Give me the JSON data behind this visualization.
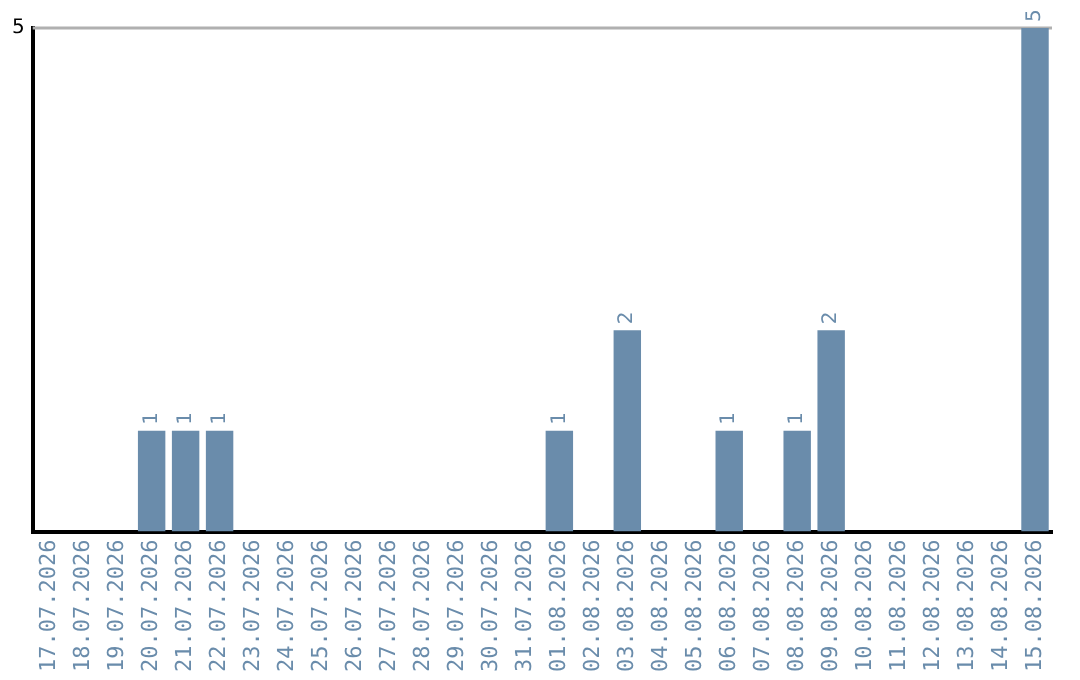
{
  "chart_data": {
    "type": "bar",
    "categories": [
      "17.07.2026",
      "18.07.2026",
      "19.07.2026",
      "20.07.2026",
      "21.07.2026",
      "22.07.2026",
      "23.07.2026",
      "24.07.2026",
      "25.07.2026",
      "26.07.2026",
      "27.07.2026",
      "28.07.2026",
      "29.07.2026",
      "30.07.2026",
      "31.07.2026",
      "01.08.2026",
      "02.08.2026",
      "03.08.2026",
      "04.08.2026",
      "05.08.2026",
      "06.08.2026",
      "07.08.2026",
      "08.08.2026",
      "09.08.2026",
      "10.08.2026",
      "11.08.2026",
      "12.08.2026",
      "13.08.2026",
      "14.08.2026",
      "15.08.2026"
    ],
    "values": [
      0,
      0,
      0,
      1,
      1,
      1,
      0,
      0,
      0,
      0,
      0,
      0,
      0,
      0,
      0,
      1,
      0,
      2,
      0,
      0,
      1,
      0,
      1,
      2,
      0,
      0,
      0,
      0,
      0,
      5
    ],
    "value_labels": [
      null,
      null,
      null,
      "1",
      "1",
      "1",
      null,
      null,
      null,
      null,
      null,
      null,
      null,
      null,
      null,
      "1",
      null,
      "2",
      null,
      null,
      "1",
      null,
      "1",
      "2",
      null,
      null,
      null,
      null,
      null,
      "5"
    ],
    "color": "#6a8cab",
    "ylim": [
      0,
      5
    ],
    "yticks": [
      5
    ],
    "ref_lines": [
      {
        "axis": "y",
        "value": 5,
        "color": "#b0b0b0"
      }
    ],
    "legend": false
  }
}
